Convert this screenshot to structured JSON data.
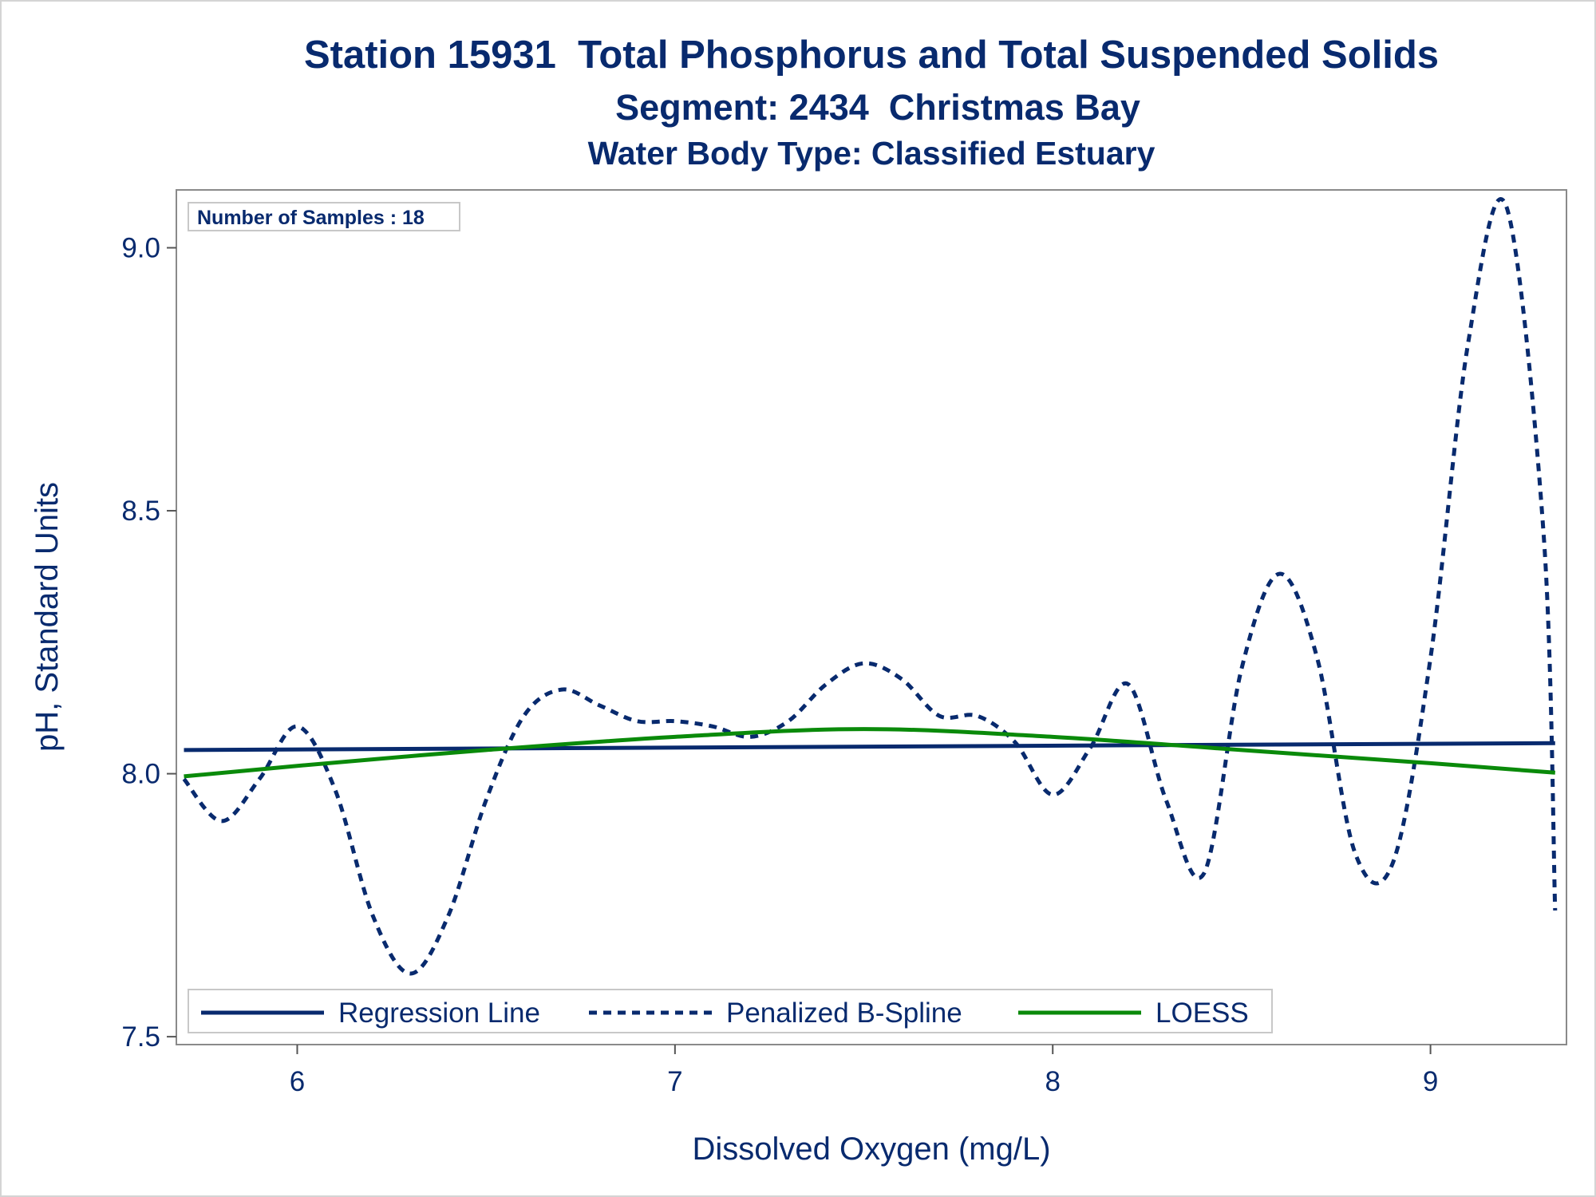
{
  "chart_data": {
    "type": "line",
    "title": "Station 15931  Total Phosphorus and Total Suspended Solids",
    "subtitle": "Segment: 2434  Christmas Bay",
    "subtitle2": "Water Body Type: Classified Estuary",
    "xlabel": "Dissolved Oxygen (mg/L)",
    "ylabel": "pH, Standard Units",
    "xlim": [
      5.68,
      9.36
    ],
    "ylim": [
      7.485,
      9.11
    ],
    "xticks": [
      6,
      7,
      8,
      9
    ],
    "yticks": [
      7.5,
      8.0,
      8.5,
      9.0
    ],
    "xtick_labels": [
      "6",
      "7",
      "8",
      "9"
    ],
    "ytick_labels": [
      "7.5",
      "8.0",
      "8.5",
      "9.0"
    ],
    "grid": false,
    "inset_label": "Number of Samples : 18",
    "legend_position": "bottom-inside",
    "series": [
      {
        "name": "Regression Line",
        "style": "solid",
        "color": "#082a6e",
        "x": [
          5.7,
          9.33
        ],
        "y": [
          8.045,
          8.058
        ]
      },
      {
        "name": "Penalized B-Spline",
        "style": "dashed",
        "color": "#082a6e",
        "x": [
          5.7,
          5.8,
          5.9,
          6.0,
          6.1,
          6.2,
          6.3,
          6.4,
          6.5,
          6.6,
          6.7,
          6.8,
          6.9,
          7.0,
          7.1,
          7.2,
          7.3,
          7.4,
          7.5,
          7.6,
          7.7,
          7.8,
          7.9,
          8.0,
          8.1,
          8.2,
          8.3,
          8.4,
          8.5,
          8.6,
          8.7,
          8.8,
          8.9,
          9.0,
          9.1,
          9.2,
          9.3,
          9.33
        ],
        "y": [
          7.99,
          7.91,
          7.99,
          8.09,
          7.97,
          7.73,
          7.62,
          7.73,
          7.95,
          8.11,
          8.16,
          8.13,
          8.1,
          8.1,
          8.09,
          8.07,
          8.1,
          8.17,
          8.21,
          8.18,
          8.11,
          8.11,
          8.06,
          7.96,
          8.05,
          8.17,
          7.95,
          7.81,
          8.2,
          8.38,
          8.22,
          7.85,
          7.83,
          8.22,
          8.82,
          9.08,
          8.45,
          7.74
        ]
      },
      {
        "name": "LOESS",
        "style": "solid",
        "color": "#0a8a0a",
        "x": [
          5.7,
          6.0,
          6.5,
          7.0,
          7.5,
          8.0,
          8.5,
          9.0,
          9.33
        ],
        "y": [
          7.995,
          8.015,
          8.045,
          8.07,
          8.085,
          8.07,
          8.045,
          8.02,
          8.002
        ]
      }
    ]
  }
}
